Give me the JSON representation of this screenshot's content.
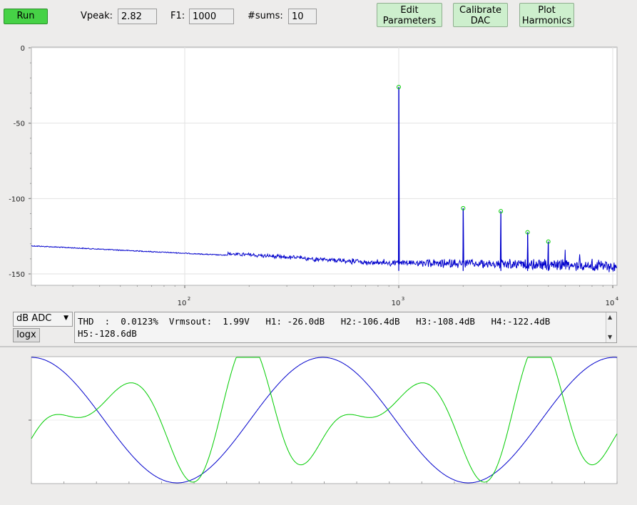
{
  "toolbar": {
    "run_label": "Run",
    "vpeak_label": "Vpeak:",
    "vpeak_value": "2.82",
    "f1_label": "F1:",
    "f1_value": "1000",
    "sums_label": "#sums:",
    "sums_value": "10",
    "edit_line1": "Edit",
    "edit_line2": "Parameters",
    "calib_line1": "Calibrate",
    "calib_line2": "DAC",
    "plot_line1": "Plot",
    "plot_line2": "Harmonics"
  },
  "spectrum": {
    "y_ticks": [
      "0",
      "-50",
      "-100",
      "-150"
    ],
    "x_tick_bases": [
      "10",
      "10",
      "10"
    ],
    "x_tick_exps": [
      "2",
      "3",
      "4"
    ],
    "ylim": [
      -155,
      0
    ],
    "xlim_decades": [
      1.27,
      4.02
    ],
    "fundamental_hz": 1000,
    "harmonic_levels_db": [
      -26.0,
      -106.4,
      -108.4,
      -122.4,
      -128.6
    ],
    "trace_color": "#0000cc",
    "marker_color": "#00cc00"
  },
  "controls": {
    "mode_value": "dB ADC",
    "logx_label": "logx"
  },
  "results": {
    "line1": "THD  :  0.0123%  Vrmsout:  1.99V   H1: -26.0dB   H2:-106.4dB   H3:-108.4dB   H4:-122.4dB",
    "line2": "H5:-128.6dB"
  },
  "waveform": {
    "colors": {
      "blue": "#0000cc",
      "green": "#00cc00"
    }
  }
}
